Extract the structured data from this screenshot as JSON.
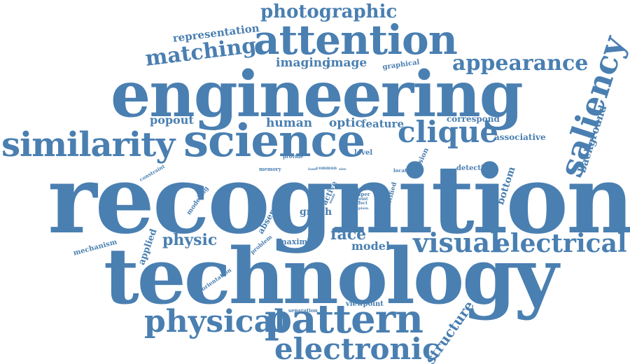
{
  "colors": {
    "word": "#4a7fb1",
    "background": "#ffffff"
  },
  "words": {
    "recognition": "recognition",
    "technology": "technology",
    "engineering": "engineering",
    "science": "science",
    "similarity": "similarity",
    "attention": "attention",
    "pattern": "pattern",
    "electronic": "electronic",
    "physical": "physical",
    "visual": "visual",
    "electrical": "electrical",
    "saliency": "saliency",
    "clique": "clique",
    "photographic": "photographic",
    "matching": "matching",
    "appearance": "appearance",
    "representation": "representation",
    "imaging": "imaging",
    "image": "image",
    "graphical": "graphical",
    "popout": "popout",
    "human": "human",
    "optic": "optic",
    "feature": "feature",
    "correspond": "correspond",
    "associative": "associative",
    "background": "background",
    "constraint": "constraint",
    "provide": "provide",
    "level": "level",
    "vision": "vision",
    "memory": "memory",
    "commun": "commun",
    "location": "location",
    "detection": "detection",
    "bottom": "bottom",
    "modeling": "modeling",
    "active": "active",
    "absence": "absence",
    "pair": "pair",
    "paper": "paper",
    "point": "point",
    "effect": "effect",
    "identified": "identified",
    "graph": "graph",
    "physic": "physic",
    "applied": "applied",
    "mechanism": "mechanism",
    "problem": "problem",
    "maximal": "maximal",
    "face": "face",
    "model": "model",
    "orientation": "orientation",
    "separation": "separation",
    "viewpoint": "viewpoint",
    "structure": "structure",
    "mode": "mode",
    "pixel": "pixel",
    "land": "land",
    "size": "size",
    "explain": "explain"
  }
}
